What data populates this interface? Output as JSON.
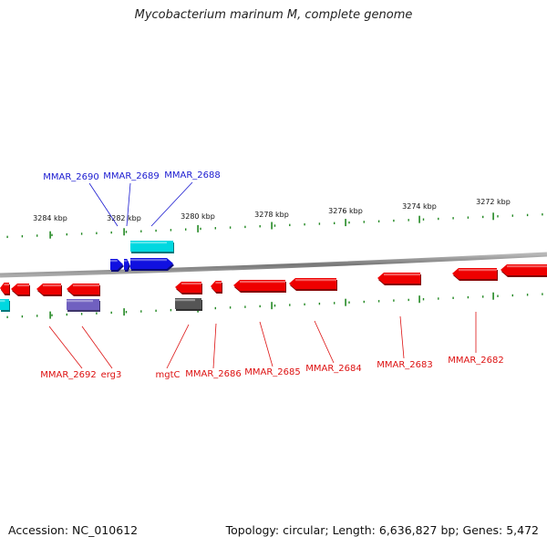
{
  "title": "Mycobacterium marinum M, complete genome",
  "footer": {
    "accession": "Accession: NC_010612",
    "summary": "Topology: circular; Length: 6,636,827 bp; Genes: 5,472"
  },
  "colors": {
    "forward_cds": "#1010e0",
    "reverse_cds": "#ee0000",
    "forward_rna": "#00d8e0",
    "reverse_rna": "#7060c0",
    "pseudo": "#555555",
    "backbone": "#8a8a8a",
    "ticks": "#228822",
    "label_forward": "#1a1ad0",
    "label_reverse": "#dd1111",
    "scale_text": "#111111"
  },
  "scale_labels": [
    "3284 kbp",
    "3282 kbp",
    "3280 kbp",
    "3278 kbp",
    "3276 kbp",
    "3274 kbp",
    "3272 kbp"
  ],
  "gene_labels": {
    "top": [
      "MMAR_2690",
      "MMAR_2689",
      "MMAR_2688"
    ],
    "bottom": [
      "MMAR_2692",
      "erg3",
      "mgtC",
      "MMAR_2686",
      "MMAR_2685",
      "MMAR_2684",
      "MMAR_2683",
      "MMAR_2682"
    ]
  }
}
